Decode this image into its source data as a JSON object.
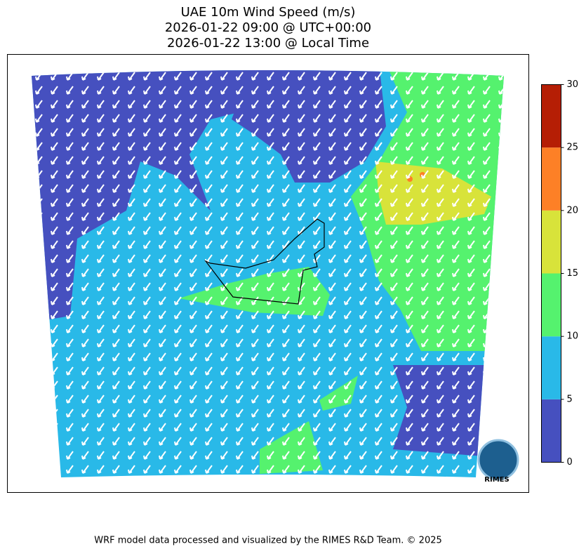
{
  "title": [
    "UAE 10m Wind Speed (m/s)",
    "2026-01-22 09:00 @ UTC+00:00",
    "2026-01-22 13:00 @ Local Time"
  ],
  "colorbar": {
    "ticks": [
      0,
      5,
      10,
      15,
      20,
      25,
      30
    ],
    "colors": [
      "#4650bf",
      "#29b9e8",
      "#55f26e",
      "#d8e33a",
      "#fd8026",
      "#b51e05"
    ]
  },
  "logo": "RIMES",
  "footer": "WRF model data processed and visualized by the RIMES R&D Team. © 2025"
}
